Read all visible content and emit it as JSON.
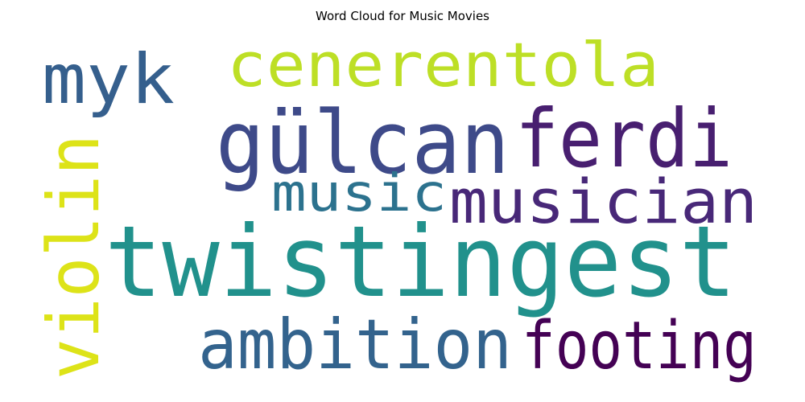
{
  "chart_data": {
    "type": "wordcloud",
    "title": "Word Cloud for Music Movies",
    "words": [
      {
        "text": "twistingest",
        "rank": 1,
        "color": "#21918c"
      },
      {
        "text": "gülcan",
        "rank": 2,
        "color": "#3e4a89"
      },
      {
        "text": "ferdi",
        "rank": 3,
        "color": "#481f70"
      },
      {
        "text": "musician",
        "rank": 4,
        "color": "#482878"
      },
      {
        "text": "ambition",
        "rank": 5,
        "color": "#33638d"
      },
      {
        "text": "footing",
        "rank": 6,
        "color": "#440154"
      },
      {
        "text": "violin",
        "rank": 7,
        "color": "#dde318"
      },
      {
        "text": "cenerentola",
        "rank": 8,
        "color": "#bddf26"
      },
      {
        "text": "myk",
        "rank": 9,
        "color": "#355f8d"
      },
      {
        "text": "music",
        "rank": 10,
        "color": "#2c728e"
      }
    ]
  }
}
